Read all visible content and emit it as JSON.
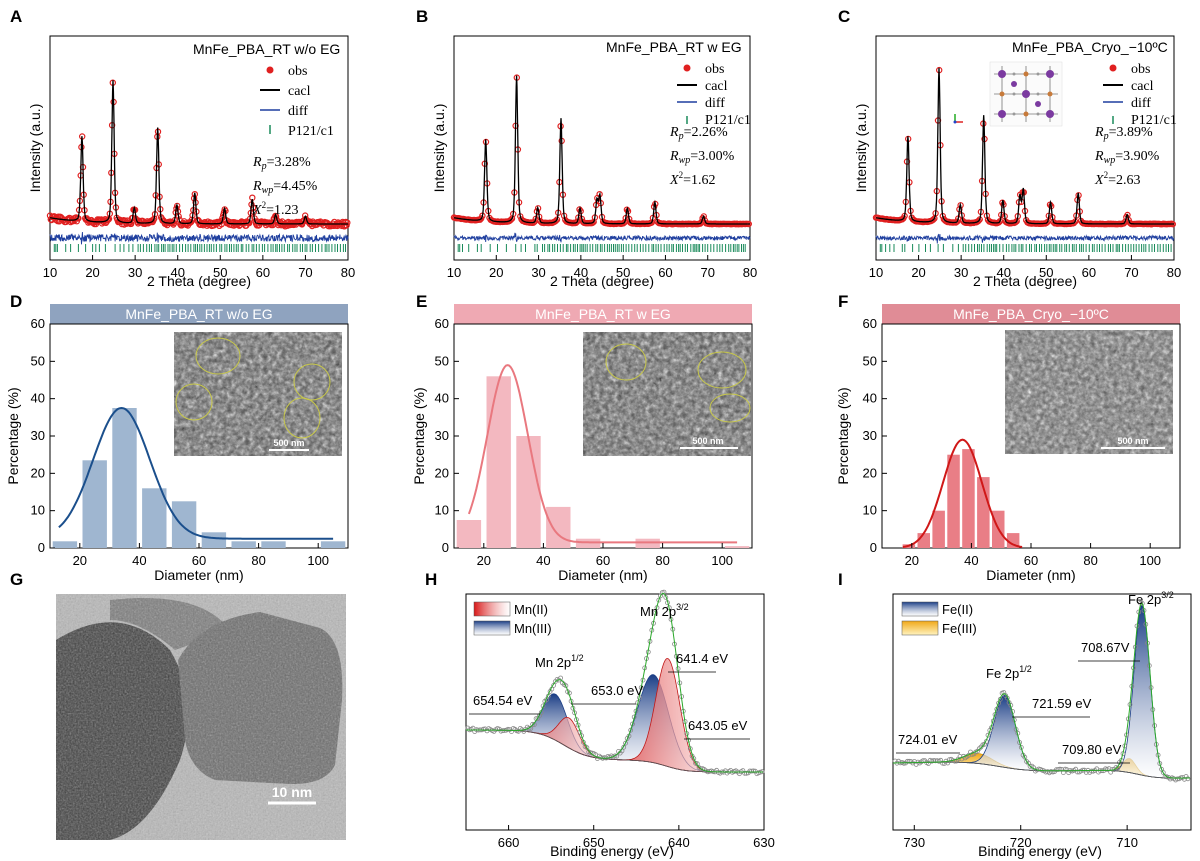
{
  "panel_letters": [
    "A",
    "B",
    "C",
    "D",
    "E",
    "F",
    "G",
    "H",
    "I"
  ],
  "colors": {
    "obs": "#e02020",
    "calc": "#000000",
    "diff": "#1f3f9f",
    "bragg": "#1a8a5a",
    "hist_D": "#9fb6d0",
    "curve_D": "#1b4f8c",
    "band_D": "#8fa3bf",
    "hist_E": "#f3b8c0",
    "curve_E": "#e9787f",
    "band_E": "#efa9b3",
    "hist_F": "#e97e86",
    "curve_F": "#d01818",
    "band_F": "#e08c96"
  },
  "xrd_common": {
    "xlabel": "2 Theta (degree)",
    "ylabel": "Intensity (a.u.)",
    "legend": [
      "obs",
      "cacl",
      "diff",
      "P121/c1"
    ]
  },
  "chart_data": [
    {
      "id": "A",
      "type": "line",
      "title": "MnFe_PBA_RT w/o EG",
      "xlabel": "2 Theta (degree)",
      "ylabel": "Intensity (a.u.)",
      "xlim": [
        10,
        80
      ],
      "xticks": [
        10,
        20,
        30,
        40,
        50,
        60,
        70,
        80
      ],
      "peaks": [
        [
          17.5,
          0.55
        ],
        [
          24.8,
          0.92
        ],
        [
          35.3,
          0.62
        ],
        [
          29.8,
          0.1
        ],
        [
          39.8,
          0.12
        ],
        [
          44,
          0.2
        ],
        [
          51,
          0.1
        ],
        [
          57.5,
          0.16
        ],
        [
          63,
          0.06
        ],
        [
          70,
          0.05
        ]
      ],
      "noise": 0.08,
      "stats": {
        "rp": "=3.28%",
        "rwp": "=4.45%",
        "chi": "=1.23"
      }
    },
    {
      "id": "B",
      "type": "line",
      "title": "MnFe_PBA_RT w EG",
      "xlabel": "2 Theta (degree)",
      "ylabel": "Intensity (a.u.)",
      "xlim": [
        10,
        80
      ],
      "xticks": [
        10,
        20,
        30,
        40,
        50,
        60,
        70,
        80
      ],
      "peaks": [
        [
          17.5,
          0.53
        ],
        [
          24.8,
          0.95
        ],
        [
          35.3,
          0.68
        ],
        [
          29.8,
          0.1
        ],
        [
          39.8,
          0.1
        ],
        [
          43.8,
          0.15
        ],
        [
          44.5,
          0.18
        ],
        [
          51,
          0.1
        ],
        [
          57.5,
          0.14
        ],
        [
          69,
          0.05
        ]
      ],
      "noise": 0.01,
      "stats": {
        "rp": "=2.26%",
        "rwp": "=3.00%",
        "chi": "=1.62"
      }
    },
    {
      "id": "C",
      "type": "line",
      "title": "MnFe_PBA_Cryo_−10ºC",
      "xlabel": "2 Theta (degree)",
      "ylabel": "Intensity (a.u.)",
      "xlim": [
        10,
        80
      ],
      "xticks": [
        10,
        20,
        30,
        40,
        50,
        60,
        70,
        80
      ],
      "peaks": [
        [
          17.5,
          0.55
        ],
        [
          24.8,
          1.0
        ],
        [
          35.3,
          0.7
        ],
        [
          29.8,
          0.12
        ],
        [
          39.8,
          0.15
        ],
        [
          43.8,
          0.18
        ],
        [
          44.6,
          0.22
        ],
        [
          51,
          0.14
        ],
        [
          57.5,
          0.2
        ],
        [
          69,
          0.06
        ]
      ],
      "noise": 0.01,
      "stats": {
        "rp": "=3.89%",
        "rwp": "=3.90%",
        "chi": "=2.63"
      }
    },
    {
      "id": "D",
      "type": "bar",
      "band_title": "MnFe_PBA_RT w/o EG",
      "xlabel": "Diameter (nm)",
      "ylabel": "Percentage (%)",
      "xlim": [
        10,
        110
      ],
      "ylim": [
        0,
        60
      ],
      "xticks": [
        20,
        40,
        60,
        80,
        100
      ],
      "yticks": [
        0,
        10,
        20,
        30,
        40,
        50,
        60
      ],
      "x": [
        15,
        25,
        35,
        45,
        55,
        65,
        75,
        85,
        95,
        105
      ],
      "values": [
        1.8,
        23.5,
        37.5,
        16,
        12.5,
        4.2,
        1.8,
        1.8,
        0,
        1.8
      ],
      "fit": {
        "mu": 34,
        "sigma": 9.5,
        "amp": 35,
        "base": 2.5,
        "from": 13,
        "to": 105
      }
    },
    {
      "id": "E",
      "type": "bar",
      "band_title": "MnFe_PBA_RT  w  EG",
      "xlabel": "Diameter (nm)",
      "ylabel": "Percentage (%)",
      "xlim": [
        10,
        110
      ],
      "ylim": [
        0,
        60
      ],
      "xticks": [
        20,
        40,
        60,
        80,
        100
      ],
      "yticks": [
        0,
        10,
        20,
        30,
        40,
        50,
        60
      ],
      "x": [
        15,
        25,
        35,
        45,
        55,
        65,
        75,
        85,
        95,
        105
      ],
      "values": [
        7.5,
        46,
        30,
        11,
        2.5,
        0,
        2.5,
        0,
        0,
        0.5
      ],
      "fit": {
        "mu": 28,
        "sigma": 6.8,
        "amp": 47.5,
        "base": 1.5,
        "from": 15,
        "to": 105
      }
    },
    {
      "id": "F",
      "type": "bar",
      "band_title": "MnFe_PBA_Cryo_−10ºC",
      "xlabel": "Diameter (nm)",
      "ylabel": "Percentage (%)",
      "xlim": [
        10,
        110
      ],
      "ylim": [
        0,
        60
      ],
      "xticks": [
        20,
        40,
        60,
        80,
        100
      ],
      "yticks": [
        0,
        10,
        20,
        30,
        40,
        50,
        60
      ],
      "x": [
        19,
        24,
        29,
        34,
        39,
        44,
        49,
        54
      ],
      "values": [
        1,
        4,
        10,
        25,
        26.5,
        19,
        10,
        4
      ],
      "fit": {
        "mu": 37,
        "sigma": 6.5,
        "amp": 29,
        "base": 0,
        "from": 17,
        "to": 57
      }
    },
    {
      "id": "H",
      "type": "line",
      "xlabel": "Binding energy (eV)",
      "xlim": [
        665,
        630
      ],
      "xticks": [
        660,
        650,
        640,
        630
      ],
      "legend": [
        "Mn(II)",
        "Mn(III)"
      ],
      "labels": {
        "mn2p12": "Mn 2p",
        "mn2p12_sup": "1/2",
        "mn2p32": "Mn 2p",
        "mn2p32_sup": "3/2",
        "e1": "641.4 eV",
        "e2": "653.0 eV",
        "e3": "654.54 eV",
        "e4": "643.05 eV"
      }
    },
    {
      "id": "I",
      "type": "line",
      "xlabel": "Binding energy (eV)",
      "xlim": [
        732,
        704
      ],
      "xticks": [
        730,
        720,
        710
      ],
      "legend": [
        "Fe(II)",
        "Fe(III)"
      ],
      "labels": {
        "fe2p12": "Fe 2p",
        "fe2p12_sup": "1/2",
        "fe2p32": "Fe 2p",
        "fe2p32_sup": "3/2",
        "e1": "708.67V",
        "e2": "721.59 eV",
        "e3": "724.01 eV",
        "e4": "709.80 eV"
      }
    }
  ],
  "sem_scalebar": "500 nm",
  "tem_scalebar": "10 nm"
}
